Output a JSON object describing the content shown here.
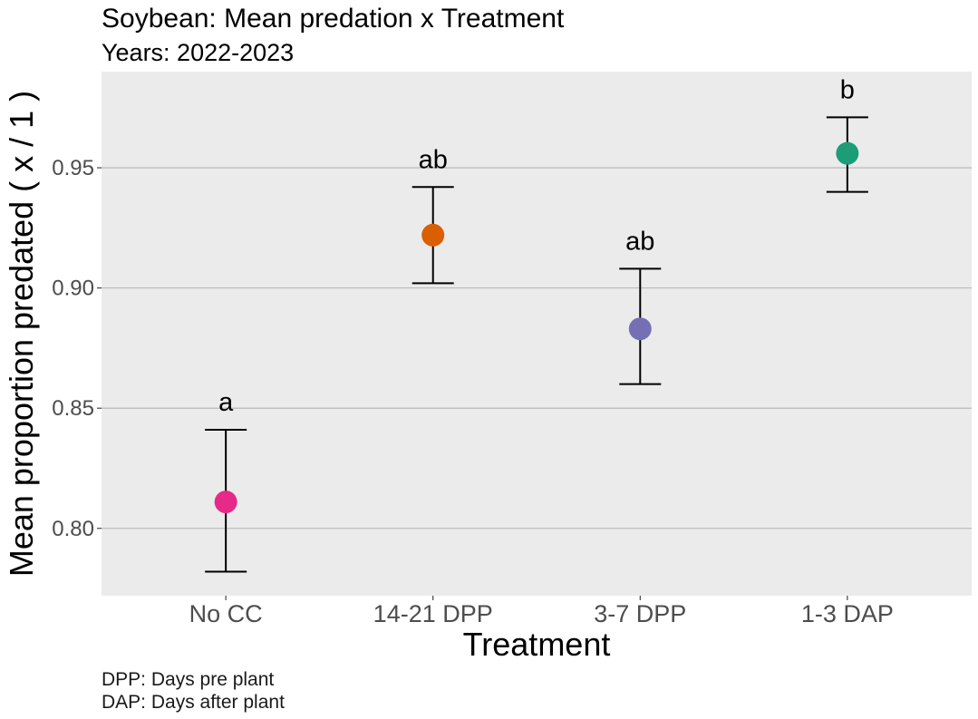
{
  "chart_data": {
    "type": "scatter",
    "title": "Soybean: Mean predation x Treatment",
    "subtitle": "Years: 2022-2023",
    "xlabel": "Treatment",
    "ylabel": "Mean proportion predated ( x / 1 )",
    "caption_lines": [
      "DPP: Days pre plant",
      "DAP: Days after plant"
    ],
    "categories": [
      "No CC",
      "14-21 DPP",
      "3-7 DPP",
      "1-3 DAP"
    ],
    "values": [
      0.811,
      0.922,
      0.883,
      0.956
    ],
    "lower": [
      0.782,
      0.902,
      0.86,
      0.94
    ],
    "upper": [
      0.841,
      0.942,
      0.908,
      0.971
    ],
    "group_labels": [
      "a",
      "ab",
      "ab",
      "b"
    ],
    "point_colors": [
      "#E7298A",
      "#D95F02",
      "#7570B3",
      "#1B9E77"
    ],
    "yticks": [
      0.8,
      0.85,
      0.9,
      0.95
    ],
    "ytick_labels": [
      "0.80",
      "0.85",
      "0.90",
      "0.95"
    ],
    "ylim": [
      0.772,
      0.99
    ],
    "grid": true,
    "legend": "none",
    "panel_background": "#EBEBEB",
    "grid_color": "#B3B3B3"
  }
}
